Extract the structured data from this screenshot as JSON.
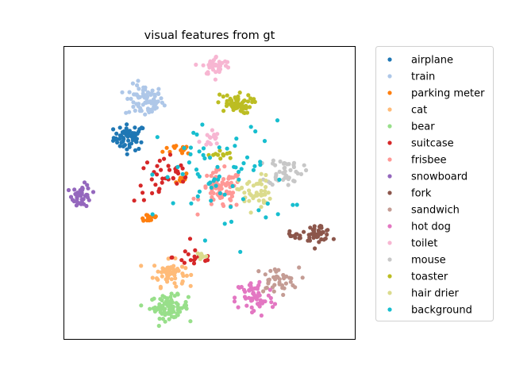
{
  "chart_data": {
    "type": "scatter",
    "title": "visual features from gt",
    "xlabel": "",
    "ylabel": "",
    "ticks": "none",
    "grid": false,
    "legend_position": "outside-right",
    "xlim": [
      -100,
      100
    ],
    "ylim": [
      -100,
      100
    ],
    "series": [
      {
        "name": "airplane",
        "color": "#1f77b4",
        "clusters": [
          {
            "center": [
              -55,
              38
            ],
            "spread": [
              10,
              8
            ],
            "count": 60
          }
        ]
      },
      {
        "name": "train",
        "color": "#aec7e8",
        "clusters": [
          {
            "center": [
              -45,
              63
            ],
            "spread": [
              12,
              10
            ],
            "count": 75
          }
        ]
      },
      {
        "name": "parking meter",
        "color": "#ff7f0e",
        "clusters": [
          {
            "center": [
              -42,
              -17
            ],
            "spread": [
              7,
              3
            ],
            "count": 14
          },
          {
            "center": [
              -18,
              30
            ],
            "spread": [
              12,
              4
            ],
            "count": 14
          },
          {
            "center": [
              -20,
              10
            ],
            "spread": [
              5,
              4
            ],
            "count": 8
          }
        ]
      },
      {
        "name": "cat",
        "color": "#ffbb78",
        "clusters": [
          {
            "center": [
              -28,
              -55
            ],
            "spread": [
              10,
              8
            ],
            "count": 60
          }
        ]
      },
      {
        "name": "bear",
        "color": "#98df8a",
        "clusters": [
          {
            "center": [
              -28,
              -78
            ],
            "spread": [
              12,
              7
            ],
            "count": 85
          }
        ]
      },
      {
        "name": "suitcase",
        "color": "#d62728",
        "clusters": [
          {
            "center": [
              -30,
              10
            ],
            "spread": [
              20,
              15
            ],
            "count": 38
          },
          {
            "center": [
              -10,
              -44
            ],
            "spread": [
              14,
              7
            ],
            "count": 18
          }
        ]
      },
      {
        "name": "frisbee",
        "color": "#ff9896",
        "clusters": [
          {
            "center": [
              8,
              2
            ],
            "spread": [
              13,
              12
            ],
            "count": 75
          }
        ]
      },
      {
        "name": "snowboard",
        "color": "#9467bd",
        "clusters": [
          {
            "center": [
              -88,
              -2
            ],
            "spread": [
              6,
              7
            ],
            "count": 45
          }
        ]
      },
      {
        "name": "fork",
        "color": "#8c564b",
        "clusters": [
          {
            "center": [
              75,
              -27
            ],
            "spread": [
              8,
              5
            ],
            "count": 40
          },
          {
            "center": [
              58,
              -30
            ],
            "spread": [
              6,
              3
            ],
            "count": 12
          }
        ]
      },
      {
        "name": "sandwich",
        "color": "#c49c94",
        "clusters": [
          {
            "center": [
              46,
              -60
            ],
            "spread": [
              14,
              8
            ],
            "count": 40
          }
        ]
      },
      {
        "name": "hot dog",
        "color": "#e377c2",
        "clusters": [
          {
            "center": [
              31,
              -72
            ],
            "spread": [
              12,
              12
            ],
            "count": 60
          }
        ]
      },
      {
        "name": "toilet",
        "color": "#f7b6d2",
        "clusters": [
          {
            "center": [
              5,
              87
            ],
            "spread": [
              9,
              6
            ],
            "count": 40
          },
          {
            "center": [
              0,
              37
            ],
            "spread": [
              6,
              6
            ],
            "count": 16
          }
        ]
      },
      {
        "name": "mouse",
        "color": "#c7c7c7",
        "clusters": [
          {
            "center": [
              52,
              15
            ],
            "spread": [
              11,
              9
            ],
            "count": 45
          }
        ]
      },
      {
        "name": "toaster",
        "color": "#bcbd22",
        "clusters": [
          {
            "center": [
              17,
              61
            ],
            "spread": [
              11,
              6
            ],
            "count": 55
          },
          {
            "center": [
              8,
              26
            ],
            "spread": [
              8,
              3
            ],
            "count": 12
          }
        ]
      },
      {
        "name": "hair drier",
        "color": "#dbdb8d",
        "clusters": [
          {
            "center": [
              31,
              0
            ],
            "spread": [
              10,
              11
            ],
            "count": 45
          },
          {
            "center": [
              -5,
              -43
            ],
            "spread": [
              5,
              3
            ],
            "count": 8
          }
        ]
      },
      {
        "name": "background",
        "color": "#17becf",
        "clusters": [
          {
            "center": [
              10,
              10
            ],
            "spread": [
              40,
              35
            ],
            "count": 70
          }
        ]
      }
    ]
  }
}
